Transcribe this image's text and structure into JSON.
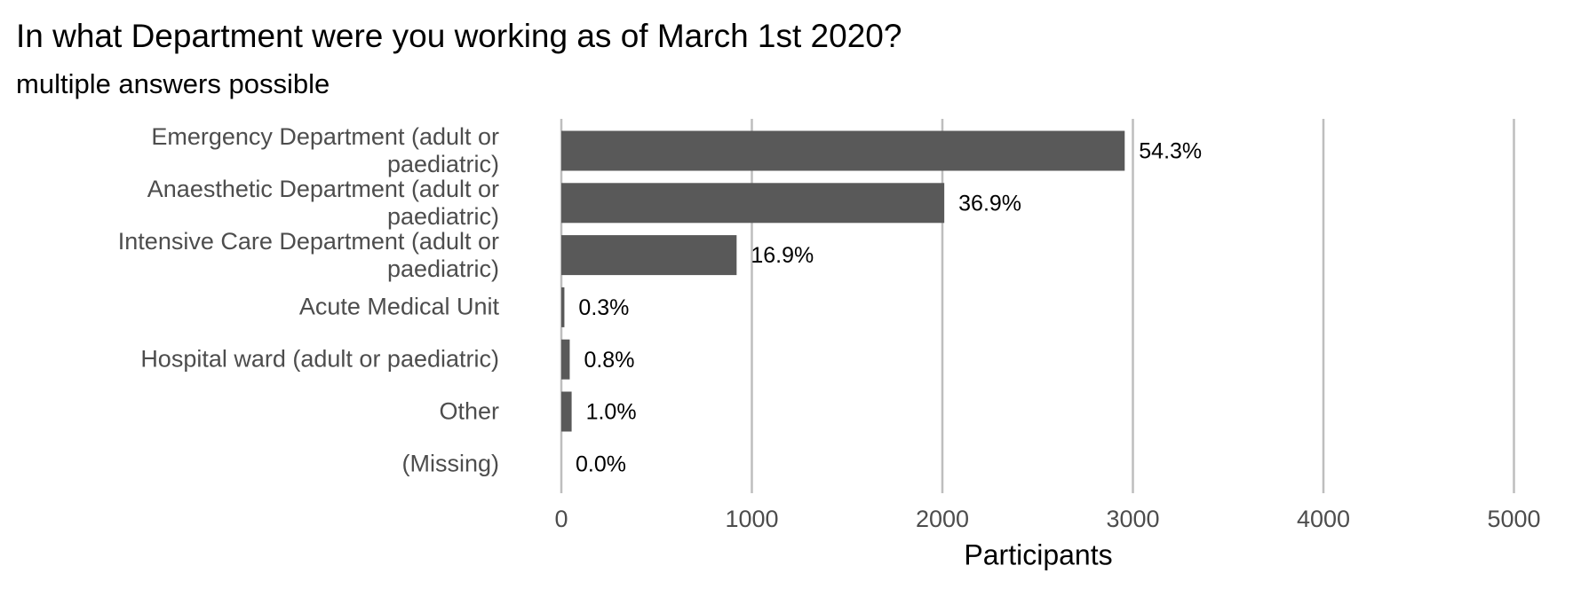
{
  "chart_data": {
    "type": "barh",
    "title": "In what Department were you working as of March 1st 2020?",
    "subtitle": "multiple answers possible",
    "x_label": "Participants",
    "categories": [
      "Emergency Department (adult or paediatric)",
      "Anaesthetic Department (adult or paediatric)",
      "Intensive Care Department (adult or paediatric)",
      "Acute Medical Unit",
      "Hospital ward (adult or paediatric)",
      "Other",
      "(Missing)"
    ],
    "values": [
      2957,
      2010,
      920,
      16,
      44,
      54,
      0
    ],
    "percent_labels": [
      "54.3%",
      "36.9%",
      "16.9%",
      "0.3%",
      "0.8%",
      "1.0%",
      "0.0%"
    ],
    "color": "#595959",
    "xlim": [
      0,
      5150
    ],
    "xticks": [
      0,
      1000,
      2000,
      3000,
      4000,
      5000
    ],
    "grid": true
  }
}
